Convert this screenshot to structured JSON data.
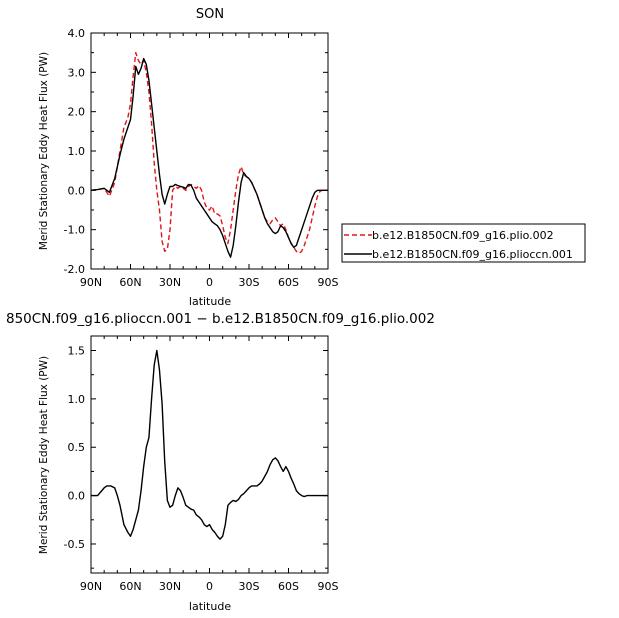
{
  "colors": {
    "pliocene": "#e0141b",
    "pliocene_ccn": "#000000"
  },
  "x_tick_labels": [
    "90N",
    "60N",
    "30N",
    "0",
    "30S",
    "60S",
    "90S"
  ],
  "chart_data": [
    {
      "type": "line",
      "title": "SON",
      "xlabel": "latitude",
      "ylabel": "Merid Stationary Eddy Heat Flux (PW)",
      "xlim": [
        90,
        -90
      ],
      "ylim": [
        -2.0,
        4.0
      ],
      "y_ticks": [
        "-2.0",
        "-1.0",
        "0.0",
        "1.0",
        "2.0",
        "3.0",
        "4.0"
      ],
      "legend_position": "right",
      "series": [
        {
          "name": "b.e12.B1850CN.f09_g16.plio.002",
          "style": "dashed",
          "color": "#e0141b",
          "x": [
            90,
            85,
            80,
            76,
            72,
            68,
            65,
            62,
            60,
            58,
            56,
            54,
            52,
            50,
            48,
            46,
            44,
            42,
            40,
            38,
            36,
            34,
            32,
            30,
            28,
            26,
            24,
            22,
            20,
            18,
            16,
            14,
            12,
            10,
            8,
            6,
            4,
            2,
            0,
            -2,
            -4,
            -6,
            -8,
            -10,
            -12,
            -14,
            -16,
            -18,
            -20,
            -22,
            -24,
            -26,
            -28,
            -30,
            -32,
            -34,
            -36,
            -38,
            -40,
            -42,
            -44,
            -46,
            -48,
            -50,
            -52,
            -54,
            -56,
            -58,
            -60,
            -62,
            -64,
            -66,
            -68,
            -70,
            -72,
            -74,
            -76,
            -78,
            -80,
            -82,
            -84,
            -86,
            -88,
            -90
          ],
          "y": [
            0.0,
            0.02,
            0.05,
            -0.15,
            0.2,
            1.0,
            1.6,
            1.85,
            2.2,
            2.9,
            3.5,
            3.3,
            3.2,
            3.3,
            3.0,
            2.5,
            1.7,
            0.7,
            0.0,
            -0.5,
            -1.3,
            -1.55,
            -1.5,
            -1.0,
            0.0,
            0.1,
            0.05,
            0.1,
            0.05,
            0.0,
            0.1,
            0.15,
            0.1,
            0.05,
            0.12,
            0.0,
            -0.3,
            -0.45,
            -0.5,
            -0.4,
            -0.6,
            -0.6,
            -0.65,
            -0.9,
            -1.2,
            -1.35,
            -1.0,
            -0.5,
            0.0,
            0.4,
            0.6,
            0.4,
            0.35,
            0.3,
            0.2,
            0.05,
            -0.1,
            -0.3,
            -0.5,
            -0.7,
            -0.8,
            -0.85,
            -0.75,
            -0.7,
            -0.8,
            -0.9,
            -0.85,
            -1.0,
            -1.2,
            -1.35,
            -1.45,
            -1.55,
            -1.6,
            -1.55,
            -1.4,
            -1.2,
            -1.0,
            -0.7,
            -0.4,
            -0.15,
            -0.02,
            0.0,
            0.0,
            0.0
          ]
        },
        {
          "name": "b.e12.B1850CN.f09_g16.plioccn.001",
          "style": "solid",
          "color": "#000000",
          "x": [
            90,
            85,
            80,
            76,
            72,
            68,
            65,
            62,
            60,
            58,
            56,
            54,
            52,
            50,
            48,
            46,
            44,
            42,
            40,
            38,
            36,
            34,
            32,
            30,
            28,
            26,
            24,
            22,
            20,
            18,
            16,
            14,
            12,
            10,
            8,
            6,
            4,
            2,
            0,
            -2,
            -4,
            -6,
            -8,
            -10,
            -12,
            -14,
            -16,
            -18,
            -20,
            -22,
            -24,
            -26,
            -28,
            -30,
            -32,
            -34,
            -36,
            -38,
            -40,
            -42,
            -44,
            -46,
            -48,
            -50,
            -52,
            -54,
            -56,
            -58,
            -60,
            -62,
            -64,
            -66,
            -68,
            -70,
            -72,
            -74,
            -76,
            -78,
            -80,
            -82,
            -84,
            -86,
            -88,
            -90
          ],
          "y": [
            0.0,
            0.02,
            0.05,
            -0.05,
            0.3,
            0.9,
            1.3,
            1.6,
            1.8,
            2.4,
            3.15,
            2.95,
            3.1,
            3.35,
            3.2,
            2.8,
            2.2,
            1.6,
            1.0,
            0.4,
            -0.1,
            -0.35,
            -0.1,
            0.1,
            0.1,
            0.15,
            0.12,
            0.1,
            0.08,
            0.05,
            0.15,
            0.13,
            0.0,
            -0.2,
            -0.3,
            -0.4,
            -0.5,
            -0.6,
            -0.7,
            -0.8,
            -0.85,
            -0.9,
            -1.0,
            -1.15,
            -1.35,
            -1.55,
            -1.7,
            -1.4,
            -0.9,
            -0.3,
            0.2,
            0.45,
            0.35,
            0.3,
            0.2,
            0.05,
            -0.1,
            -0.3,
            -0.5,
            -0.7,
            -0.85,
            -0.95,
            -1.05,
            -1.1,
            -1.05,
            -0.9,
            -0.95,
            -1.05,
            -1.2,
            -1.35,
            -1.45,
            -1.4,
            -1.2,
            -1.0,
            -0.8,
            -0.6,
            -0.4,
            -0.2,
            -0.05,
            0.0,
            0.0,
            0.0,
            0.0,
            0.0
          ]
        }
      ]
    },
    {
      "type": "line",
      "title": "850CN.f09_g16.plioccn.001 − b.e12.B1850CN.f09_g16.plio.002",
      "xlabel": "latitude",
      "ylabel": "Merid Stationary Eddy Heat Flux (PW)",
      "xlim": [
        90,
        -90
      ],
      "ylim": [
        -0.8,
        1.65
      ],
      "y_ticks": [
        "-0.5",
        "0.0",
        "0.5",
        "1.0",
        "1.5"
      ],
      "series": [
        {
          "style": "solid",
          "color": "#000000",
          "x": [
            90,
            85,
            80,
            78,
            75,
            72,
            70,
            68,
            65,
            62,
            60,
            58,
            56,
            54,
            52,
            50,
            48,
            46,
            44,
            42,
            40,
            38,
            36,
            34,
            32,
            30,
            28,
            26,
            24,
            22,
            20,
            18,
            16,
            14,
            12,
            10,
            8,
            6,
            4,
            2,
            0,
            -2,
            -4,
            -6,
            -8,
            -10,
            -12,
            -14,
            -16,
            -18,
            -20,
            -22,
            -24,
            -26,
            -28,
            -30,
            -32,
            -34,
            -36,
            -38,
            -40,
            -42,
            -44,
            -46,
            -48,
            -50,
            -52,
            -54,
            -56,
            -58,
            -60,
            -62,
            -64,
            -66,
            -68,
            -70,
            -72,
            -74,
            -76,
            -78,
            -80,
            -82,
            -84,
            -86,
            -88,
            -90
          ],
          "y": [
            0.0,
            0.0,
            0.08,
            0.1,
            0.1,
            0.08,
            0.0,
            -0.1,
            -0.3,
            -0.38,
            -0.42,
            -0.35,
            -0.25,
            -0.15,
            0.05,
            0.3,
            0.5,
            0.6,
            1.0,
            1.35,
            1.5,
            1.3,
            0.95,
            0.35,
            -0.05,
            -0.12,
            -0.1,
            0.0,
            0.08,
            0.05,
            -0.02,
            -0.1,
            -0.12,
            -0.14,
            -0.15,
            -0.2,
            -0.22,
            -0.25,
            -0.3,
            -0.32,
            -0.3,
            -0.35,
            -0.38,
            -0.42,
            -0.45,
            -0.42,
            -0.3,
            -0.1,
            -0.07,
            -0.05,
            -0.06,
            -0.04,
            0.0,
            0.02,
            0.05,
            0.08,
            0.1,
            0.1,
            0.1,
            0.12,
            0.15,
            0.2,
            0.25,
            0.32,
            0.37,
            0.39,
            0.36,
            0.3,
            0.25,
            0.3,
            0.25,
            0.18,
            0.12,
            0.05,
            0.02,
            0.0,
            -0.01,
            0.0,
            0.0,
            0.0,
            0.0,
            0.0,
            0.0,
            0.0,
            0.0,
            0.0
          ]
        }
      ]
    }
  ]
}
